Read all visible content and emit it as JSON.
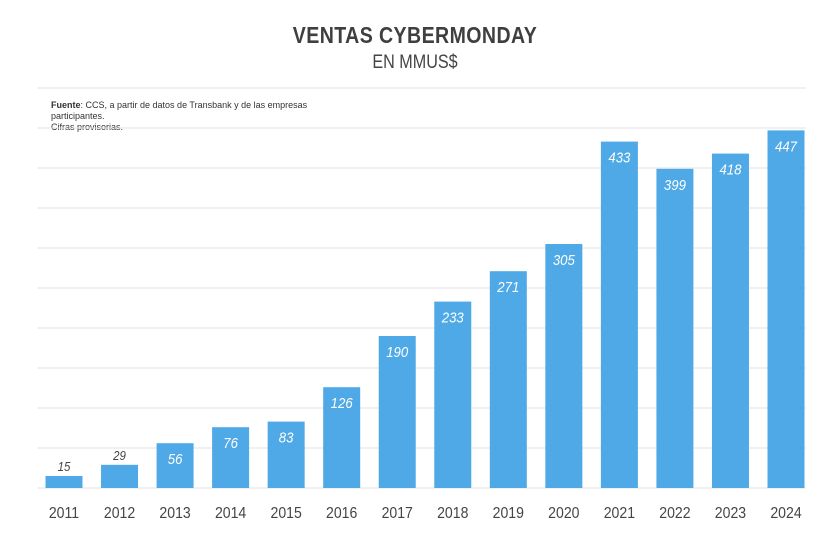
{
  "chart_data": {
    "type": "bar",
    "title": "VENTAS CYBERMONDAY",
    "subtitle": "EN MMUS$",
    "note": {
      "label": "Fuente",
      "text": ": CCS, a partir de datos de Transbank y de las empresas participantes.",
      "text2": "Cifras provisorias."
    },
    "categories": [
      "2011",
      "2012",
      "2013",
      "2014",
      "2015",
      "2016",
      "2017",
      "2018",
      "2019",
      "2020",
      "2021",
      "2022",
      "2023",
      "2024"
    ],
    "values": [
      15,
      29,
      56,
      76,
      83,
      126,
      190,
      233,
      271,
      305,
      433,
      399,
      418,
      447
    ],
    "ylim": [
      0,
      500
    ],
    "grid": true,
    "bar_color": "#4ea9e6",
    "gridline_color": "#e3e3e3"
  }
}
